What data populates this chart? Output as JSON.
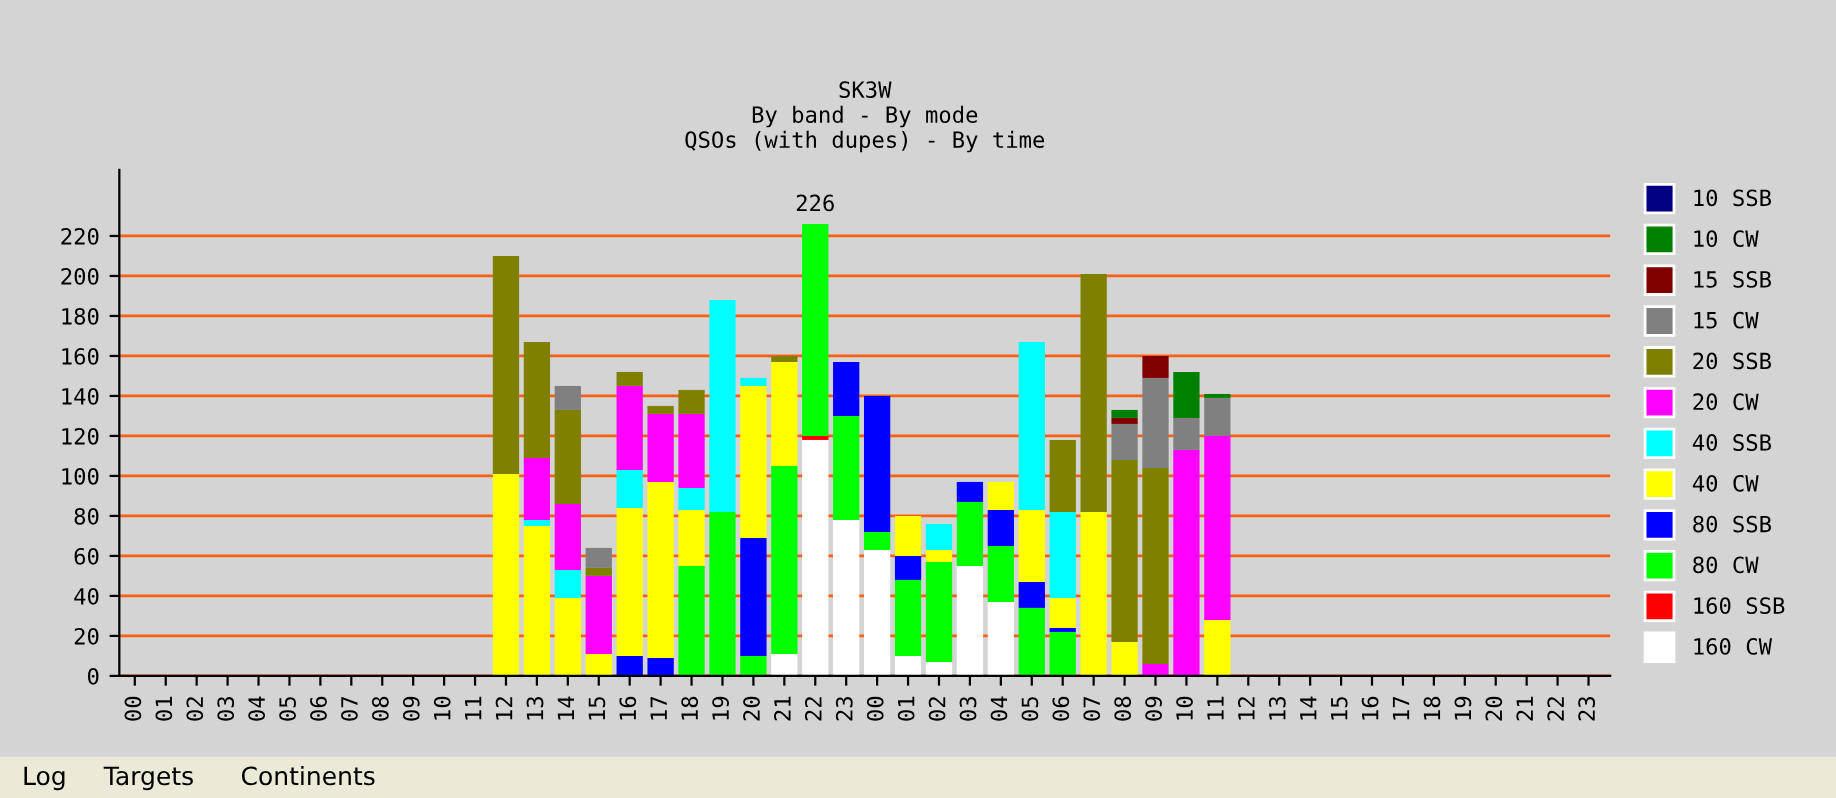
{
  "chart_data": {
    "type": "bar",
    "stacked": true,
    "title": "SK3W",
    "subtitle": "By band - By mode\nQSOs (with dupes) - By time",
    "categories": [
      "00",
      "01",
      "02",
      "03",
      "04",
      "05",
      "06",
      "07",
      "08",
      "09",
      "10",
      "11",
      "12",
      "13",
      "14",
      "15",
      "16",
      "17",
      "18",
      "19",
      "20",
      "21",
      "22",
      "23",
      "00",
      "01",
      "02",
      "03",
      "04",
      "05",
      "06",
      "07",
      "08",
      "09",
      "10",
      "11",
      "12",
      "13",
      "14",
      "15",
      "16",
      "17",
      "18",
      "19",
      "20",
      "21",
      "22",
      "23"
    ],
    "series": [
      {
        "name": "160 CW",
        "color": "#ffffff",
        "values": [
          null,
          null,
          null,
          null,
          null,
          null,
          null,
          null,
          null,
          null,
          null,
          null,
          null,
          null,
          null,
          null,
          null,
          null,
          null,
          null,
          null,
          11,
          118,
          78,
          63,
          10,
          7,
          55,
          37,
          null,
          null,
          null,
          null,
          null,
          null,
          null,
          null,
          null,
          null,
          null,
          null,
          null,
          null,
          null,
          null,
          null,
          null,
          null
        ]
      },
      {
        "name": "160 SSB",
        "color": "#ff0000",
        "values": [
          null,
          null,
          null,
          null,
          null,
          null,
          null,
          null,
          null,
          null,
          null,
          null,
          null,
          null,
          null,
          null,
          null,
          null,
          null,
          null,
          null,
          null,
          2,
          null,
          null,
          null,
          null,
          null,
          null,
          null,
          null,
          null,
          null,
          null,
          null,
          null,
          null,
          null,
          null,
          null,
          null,
          null,
          null,
          null,
          null,
          null,
          null,
          null
        ]
      },
      {
        "name": "80 CW",
        "color": "#00ff00",
        "values": [
          null,
          null,
          null,
          null,
          null,
          null,
          null,
          null,
          null,
          null,
          null,
          null,
          null,
          null,
          null,
          null,
          null,
          null,
          55,
          82,
          10,
          94,
          106,
          52,
          9,
          38,
          50,
          32,
          28,
          34,
          22,
          null,
          null,
          null,
          null,
          null,
          null,
          null,
          null,
          null,
          null,
          null,
          null,
          null,
          null,
          null,
          null,
          null
        ]
      },
      {
        "name": "80 SSB",
        "color": "#0000ff",
        "values": [
          null,
          null,
          null,
          null,
          null,
          null,
          null,
          null,
          null,
          null,
          null,
          null,
          null,
          null,
          null,
          null,
          10,
          9,
          null,
          null,
          59,
          null,
          null,
          27,
          68,
          12,
          null,
          10,
          18,
          13,
          2,
          null,
          null,
          null,
          null,
          null,
          null,
          null,
          null,
          null,
          null,
          null,
          null,
          null,
          null,
          null,
          null,
          null
        ]
      },
      {
        "name": "40 CW",
        "color": "#ffff00",
        "values": [
          null,
          null,
          null,
          null,
          null,
          null,
          null,
          null,
          null,
          null,
          null,
          null,
          101,
          75,
          39,
          11,
          74,
          88,
          28,
          null,
          76,
          52,
          null,
          null,
          null,
          20,
          6,
          null,
          14,
          36,
          15,
          82,
          17,
          null,
          null,
          28,
          null,
          null,
          null,
          null,
          null,
          null,
          null,
          null,
          null,
          null,
          null,
          null
        ]
      },
      {
        "name": "40 SSB",
        "color": "#00ffff",
        "values": [
          null,
          null,
          null,
          null,
          null,
          null,
          null,
          null,
          null,
          null,
          null,
          null,
          null,
          3,
          14,
          null,
          19,
          null,
          11,
          106,
          4,
          null,
          null,
          null,
          null,
          null,
          13,
          null,
          null,
          84,
          43,
          null,
          null,
          null,
          null,
          null,
          null,
          null,
          null,
          null,
          null,
          null,
          null,
          null,
          null,
          null,
          null,
          null
        ]
      },
      {
        "name": "20 CW",
        "color": "#ff00ff",
        "values": [
          null,
          null,
          null,
          null,
          null,
          null,
          null,
          null,
          null,
          null,
          null,
          null,
          null,
          31,
          33,
          39,
          42,
          34,
          37,
          null,
          null,
          null,
          null,
          null,
          null,
          null,
          null,
          null,
          null,
          null,
          null,
          null,
          null,
          6,
          113,
          92,
          null,
          null,
          null,
          null,
          null,
          null,
          null,
          null,
          null,
          null,
          null,
          null
        ]
      },
      {
        "name": "20 SSB",
        "color": "#808000",
        "values": [
          null,
          null,
          null,
          null,
          null,
          null,
          null,
          null,
          null,
          null,
          null,
          null,
          109,
          58,
          47,
          4,
          7,
          4,
          12,
          null,
          null,
          3,
          null,
          null,
          null,
          null,
          null,
          null,
          null,
          null,
          36,
          119,
          91,
          98,
          null,
          null,
          null,
          null,
          null,
          null,
          null,
          null,
          null,
          null,
          null,
          null,
          null,
          null
        ]
      },
      {
        "name": "15 CW",
        "color": "#808080",
        "values": [
          null,
          null,
          null,
          null,
          null,
          null,
          null,
          null,
          null,
          null,
          null,
          null,
          null,
          null,
          12,
          10,
          null,
          null,
          null,
          null,
          null,
          null,
          null,
          null,
          null,
          null,
          null,
          null,
          null,
          null,
          null,
          null,
          18,
          45,
          16,
          19,
          null,
          null,
          null,
          null,
          null,
          null,
          null,
          null,
          null,
          null,
          null,
          null
        ]
      },
      {
        "name": "15 SSB",
        "color": "#800000",
        "values": [
          null,
          null,
          null,
          null,
          null,
          null,
          null,
          null,
          null,
          null,
          null,
          null,
          null,
          null,
          null,
          null,
          null,
          null,
          null,
          null,
          null,
          null,
          null,
          null,
          null,
          null,
          null,
          null,
          null,
          null,
          null,
          null,
          3,
          11,
          null,
          null,
          null,
          null,
          null,
          null,
          null,
          null,
          null,
          null,
          null,
          null,
          null,
          null
        ]
      },
      {
        "name": "10 CW",
        "color": "#008000",
        "values": [
          null,
          null,
          null,
          null,
          null,
          null,
          null,
          null,
          null,
          null,
          null,
          null,
          null,
          null,
          null,
          null,
          null,
          null,
          null,
          null,
          null,
          null,
          null,
          null,
          null,
          null,
          null,
          null,
          null,
          null,
          null,
          null,
          4,
          null,
          23,
          2,
          null,
          null,
          null,
          null,
          null,
          null,
          null,
          null,
          null,
          null,
          null,
          null
        ]
      },
      {
        "name": "10 SSB",
        "color": "#000080",
        "values": [
          null,
          null,
          null,
          null,
          null,
          null,
          null,
          null,
          null,
          null,
          null,
          null,
          null,
          null,
          null,
          null,
          null,
          null,
          null,
          null,
          null,
          null,
          null,
          null,
          null,
          null,
          null,
          null,
          null,
          null,
          null,
          null,
          null,
          null,
          null,
          null,
          null,
          null,
          null,
          null,
          null,
          null,
          null,
          null,
          null,
          null,
          null,
          null
        ]
      }
    ],
    "ylim": [
      0,
      253
    ],
    "yticks": [
      0,
      20,
      40,
      60,
      80,
      100,
      120,
      140,
      160,
      180,
      200,
      220
    ],
    "grid": "y",
    "legend": "right",
    "annotations": [
      {
        "text": "226",
        "x": "22",
        "y": 226
      },
      "Log",
      "Targets",
      "Continents"
    ]
  }
}
